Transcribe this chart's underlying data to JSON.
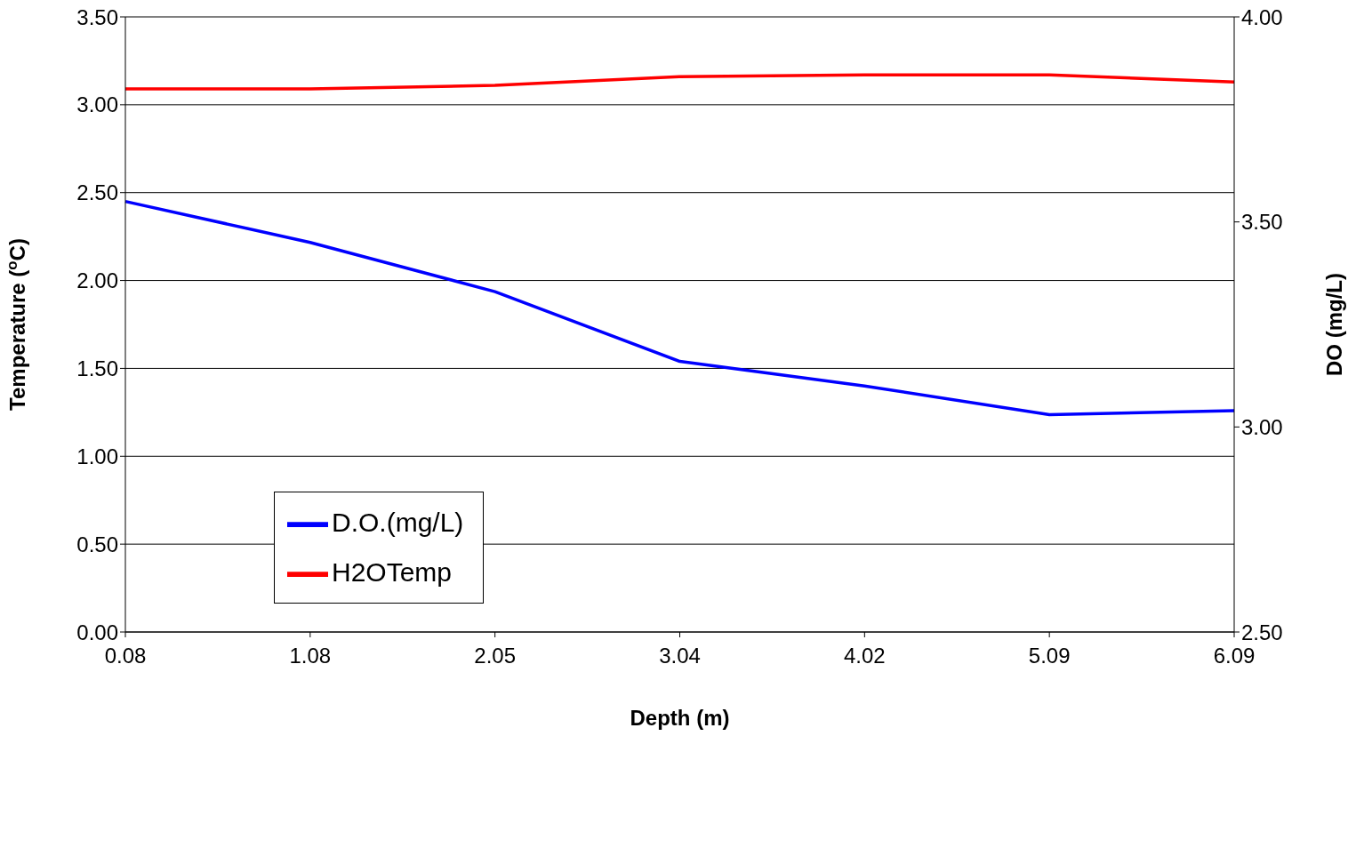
{
  "chart_data": {
    "type": "line",
    "xlabel": "Depth (m)",
    "ylabel": "Temperature ($^{o}$C)",
    "y2label": "DO (mg/L)",
    "categories": [
      "0.08",
      "1.08",
      "2.05",
      "3.04",
      "4.02",
      "5.09",
      "6.09"
    ],
    "series": [
      {
        "name": "H2OTemp",
        "color": "#ff0000",
        "values": [
          3.09,
          3.09,
          3.11,
          3.16,
          3.17,
          3.17,
          3.13
        ]
      },
      {
        "name": "D.O.(mg/L)",
        "color": "#0000ff",
        "axis": "y2",
        "values": [
          3.55,
          3.45,
          3.33,
          3.16,
          3.1,
          3.03,
          3.04
        ]
      }
    ],
    "ylim": [
      0,
      3.5
    ],
    "yticks": [
      {
        "value": 0,
        "label": "0.00"
      },
      {
        "value": 0.5,
        "label": "0.50"
      },
      {
        "value": 1,
        "label": "1.00"
      },
      {
        "value": 1.5,
        "label": "1.50"
      },
      {
        "value": 2,
        "label": "2.00"
      },
      {
        "value": 2.5,
        "label": "2.50"
      },
      {
        "value": 3,
        "label": "3.00"
      },
      {
        "value": 3.5,
        "label": "3.50"
      }
    ],
    "y2lim": [
      2.5,
      4
    ],
    "y2ticks": [
      {
        "value": 2.5,
        "label": "2.50"
      },
      {
        "value": 3,
        "label": "3.00"
      },
      {
        "value": 3.5,
        "label": "3.50"
      },
      {
        "value": 4,
        "label": "4.00"
      }
    ],
    "grid": "y",
    "legend": "left",
    "marker": "none",
    "line_style": "solid"
  }
}
